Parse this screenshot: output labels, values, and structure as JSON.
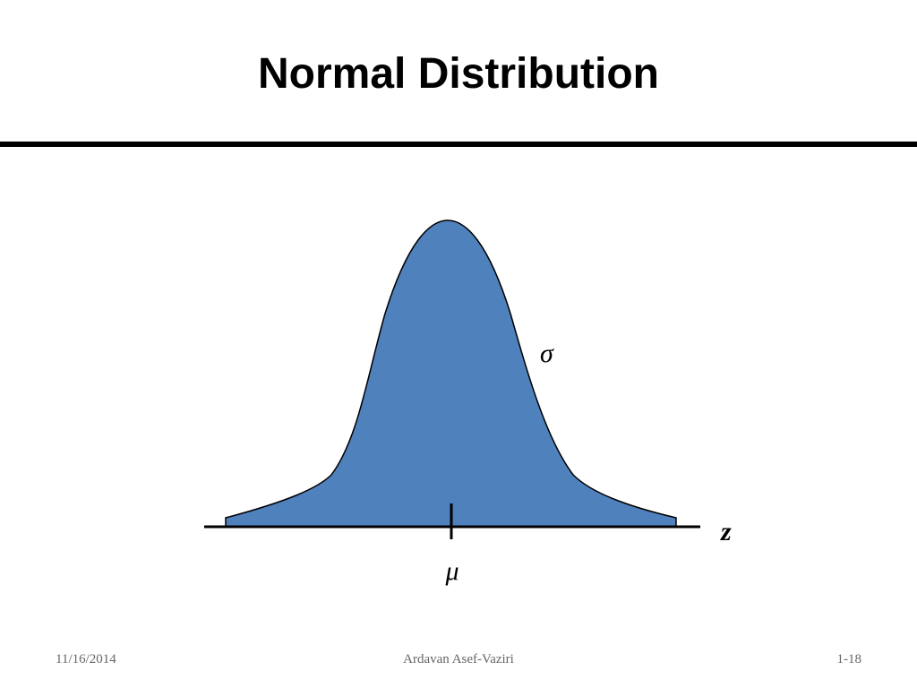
{
  "header": {
    "title": "Normal Distribution"
  },
  "diagram": {
    "sigma_label": "σ",
    "axis_label": "z",
    "mean_label": "μ"
  },
  "footer": {
    "date": "11/16/2014",
    "author": "Ardavan Asef-Vaziri",
    "page": "1-18"
  }
}
